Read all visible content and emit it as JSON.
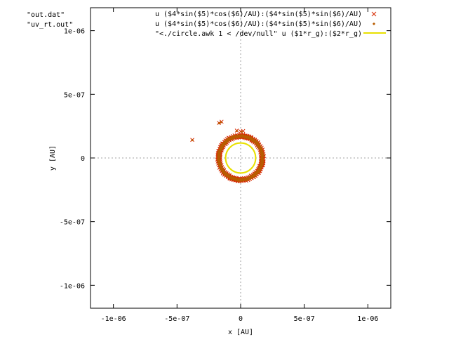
{
  "files": [
    "\"out.dat\"",
    "\"uv_rt.out\""
  ],
  "chart_data": {
    "type": "scatter",
    "title": "",
    "xlabel": "x [AU]",
    "ylabel": "y [AU]",
    "xlim": [
      -1.18e-06,
      1.18e-06
    ],
    "ylim": [
      -1.18e-06,
      1.18e-06
    ],
    "grid": false,
    "zero_axes": true,
    "legend_position": "top-right",
    "x_ticks": [
      -1e-06,
      -5e-07,
      0,
      5e-07,
      1e-06
    ],
    "y_ticks": [
      -1e-06,
      -5e-07,
      0,
      5e-07,
      1e-06
    ],
    "x_tick_labels": [
      "-1e-06",
      "-5e-07",
      "0",
      "5e-07",
      "1e-06"
    ],
    "y_tick_labels": [
      "-1e-06",
      "-5e-07",
      "0",
      "5e-07",
      "1e-06"
    ],
    "series": [
      {
        "name": "u ($4*sin($5)*cos($6)/AU):($4*sin($5)*sin($6)/AU)",
        "kind": "ring-points",
        "marker": "cross",
        "color": "#d62a00",
        "ring_inner_radius": 1.6e-07,
        "ring_outer_radius": 1.85e-07,
        "stray_points": [
          [
            -3.8e-07,
            1.42e-07
          ],
          [
            -1.7e-07,
            2.75e-07
          ],
          [
            -1.5e-07,
            2.85e-07
          ],
          [
            -3e-08,
            2.15e-07
          ],
          [
            0,
            2.08e-07
          ],
          [
            2e-08,
            2.12e-07
          ]
        ]
      },
      {
        "name": "u ($4*sin($5)*cos($6)/AU):($4*sin($5)*sin($6)/AU)",
        "kind": "ring-points",
        "marker": "diamond",
        "color": "#b85c00",
        "ring_inner_radius": 1.62e-07,
        "ring_outer_radius": 1.82e-07,
        "stray_points": [
          [
            -3.8e-07,
            1.4e-07
          ],
          [
            -1.7e-07,
            2.72e-07
          ],
          [
            -1.55e-07,
            2.8e-07
          ],
          [
            -3e-08,
            2.12e-07
          ],
          [
            1e-08,
            2.05e-07
          ]
        ]
      },
      {
        "name": "\"<./circle.awk 1 < /dev/null\" u ($1*r_g):($2*r_g)",
        "kind": "line-circle",
        "color": "#e8e000",
        "radius": 1.18e-07
      }
    ]
  }
}
